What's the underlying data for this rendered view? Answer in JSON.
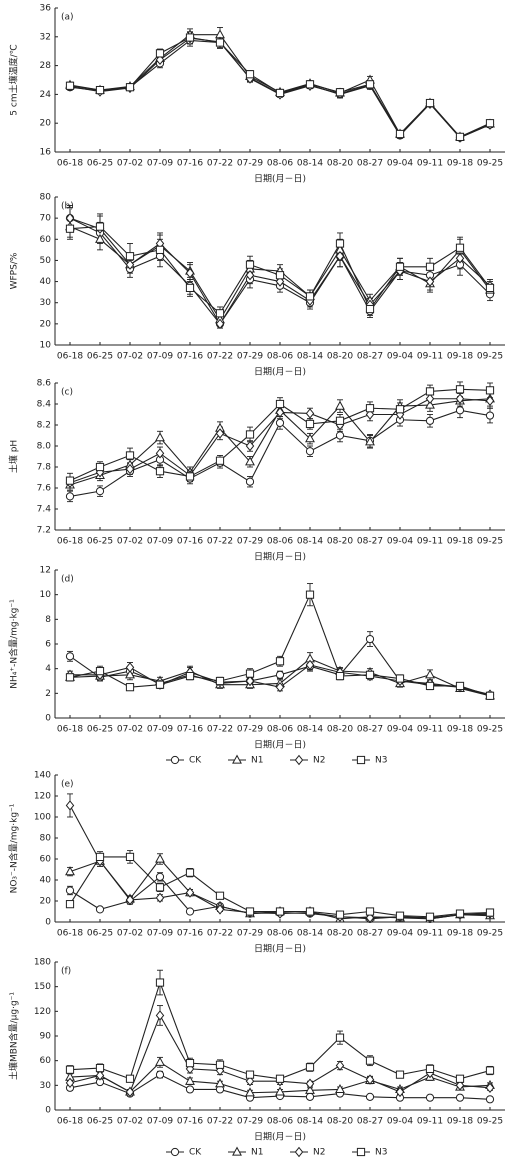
{
  "chart_data": [
    {
      "type": "line",
      "panel": "(a)",
      "ylabel": "5 cm土壤温度/℃",
      "xlabel": "日期(月－日)",
      "color": "#222222",
      "categories": [
        "06-18",
        "06-25",
        "07-02",
        "07-09",
        "07-16",
        "07-22",
        "07-29",
        "08-06",
        "08-14",
        "08-20",
        "08-27",
        "09-04",
        "09-11",
        "09-18",
        "09-25"
      ],
      "ylim": [
        16,
        36
      ],
      "yticks": [
        16,
        20,
        24,
        28,
        32,
        36
      ],
      "legend": false,
      "series": [
        {
          "marker": "circle",
          "values": [
            25.0,
            24.5,
            25.0,
            28.3,
            31.5,
            31.2,
            26.3,
            24.1,
            25.3,
            24.0,
            25.2,
            18.3,
            22.7,
            18.0,
            19.8
          ],
          "errors": [
            0.4,
            0.3,
            0.3,
            0.6,
            0.8,
            0.8,
            0.5,
            0.4,
            0.4,
            0.5,
            0.5,
            0.4,
            0.3,
            0.3,
            0.4
          ]
        },
        {
          "marker": "triangle",
          "values": [
            25.3,
            24.6,
            25.1,
            29.0,
            32.3,
            32.3,
            26.5,
            24.3,
            25.5,
            24.2,
            26.0,
            18.5,
            22.8,
            18.1,
            19.9
          ],
          "errors": [
            0.4,
            0.3,
            0.3,
            0.6,
            0.8,
            1.0,
            0.5,
            0.4,
            0.4,
            0.5,
            0.5,
            0.4,
            0.3,
            0.3,
            0.4
          ]
        },
        {
          "marker": "diamond",
          "values": [
            25.1,
            24.4,
            24.9,
            28.8,
            31.8,
            31.3,
            26.2,
            24.0,
            25.2,
            24.1,
            25.3,
            18.4,
            22.7,
            18.0,
            19.8
          ],
          "errors": [
            0.4,
            0.3,
            0.3,
            0.6,
            0.8,
            0.8,
            0.5,
            0.4,
            0.4,
            0.5,
            0.5,
            0.4,
            0.3,
            0.3,
            0.4
          ]
        },
        {
          "marker": "square",
          "values": [
            25.2,
            24.6,
            25.0,
            29.7,
            31.9,
            31.2,
            26.8,
            24.2,
            25.4,
            24.3,
            25.4,
            18.5,
            22.8,
            18.1,
            20.0
          ],
          "errors": [
            0.4,
            0.3,
            0.3,
            0.6,
            0.8,
            0.8,
            0.5,
            0.4,
            0.4,
            0.5,
            0.5,
            0.4,
            0.3,
            0.3,
            0.4
          ]
        }
      ]
    },
    {
      "type": "line",
      "panel": "(b)",
      "ylabel": "WFPS/%",
      "xlabel": "日期(月－日)",
      "color": "#222222",
      "categories": [
        "06-18",
        "06-25",
        "07-02",
        "07-09",
        "07-16",
        "07-22",
        "07-29",
        "08-06",
        "08-14",
        "08-20",
        "08-27",
        "09-04",
        "09-11",
        "09-18",
        "09-25"
      ],
      "ylim": [
        10,
        80
      ],
      "yticks": [
        10,
        20,
        30,
        40,
        50,
        60,
        70,
        80
      ],
      "legend": false,
      "series": [
        {
          "marker": "circle",
          "values": [
            70,
            63,
            46,
            52,
            38,
            20,
            41,
            38,
            30,
            52,
            26,
            45,
            43,
            48,
            34
          ],
          "errors": [
            5,
            5,
            4,
            5,
            4,
            2,
            4,
            3,
            3,
            5,
            3,
            4,
            4,
            5,
            3
          ]
        },
        {
          "marker": "triangle",
          "values": [
            66,
            60,
            48,
            57,
            45,
            22,
            46,
            45,
            33,
            55,
            31,
            47,
            39,
            55,
            36
          ],
          "errors": [
            5,
            5,
            4,
            5,
            4,
            3,
            4,
            3,
            3,
            5,
            3,
            4,
            4,
            5,
            3
          ]
        },
        {
          "marker": "diamond",
          "values": [
            70,
            65,
            48,
            58,
            44,
            20,
            43,
            40,
            31,
            52,
            29,
            45,
            40,
            51,
            38
          ],
          "errors": [
            6,
            6,
            4,
            5,
            4,
            2,
            4,
            3,
            3,
            5,
            3,
            4,
            4,
            5,
            3
          ]
        },
        {
          "marker": "square",
          "values": [
            65,
            66,
            52,
            55,
            37,
            25,
            48,
            43,
            33,
            58,
            27,
            47,
            47,
            56,
            37
          ],
          "errors": [
            5,
            6,
            6,
            5,
            4,
            3,
            4,
            3,
            3,
            5,
            3,
            4,
            4,
            5,
            3
          ]
        }
      ]
    },
    {
      "type": "line",
      "panel": "(c)",
      "ylabel": "土壤 pH",
      "xlabel": "日期(月－日)",
      "color": "#222222",
      "categories": [
        "06-18",
        "06-25",
        "07-02",
        "07-09",
        "07-16",
        "07-22",
        "07-29",
        "08-06",
        "08-14",
        "08-20",
        "08-27",
        "09-04",
        "09-11",
        "09-18",
        "09-25"
      ],
      "ylim": [
        7.2,
        8.6
      ],
      "yticks": [
        7.2,
        7.4,
        7.6,
        7.8,
        {
          "value": 8,
          "label": "8.0"
        },
        8.2,
        8.4,
        8.6
      ],
      "legend": false,
      "series": [
        {
          "marker": "circle",
          "values": [
            7.52,
            7.57,
            7.76,
            7.87,
            7.69,
            7.84,
            7.66,
            8.22,
            7.95,
            8.1,
            8.05,
            8.25,
            8.24,
            8.34,
            8.29
          ],
          "errors": [
            0.05,
            0.05,
            0.05,
            0.06,
            0.05,
            0.05,
            0.05,
            0.06,
            0.05,
            0.06,
            0.06,
            0.06,
            0.06,
            0.07,
            0.07
          ]
        },
        {
          "marker": "triangle",
          "values": [
            7.63,
            7.72,
            7.82,
            8.08,
            7.75,
            8.17,
            7.85,
            8.34,
            8.07,
            8.38,
            8.04,
            8.38,
            8.39,
            8.43,
            8.45
          ],
          "errors": [
            0.05,
            0.05,
            0.05,
            0.06,
            0.05,
            0.06,
            0.05,
            0.06,
            0.05,
            0.06,
            0.06,
            0.06,
            0.06,
            0.07,
            0.07
          ]
        },
        {
          "marker": "diamond",
          "values": [
            7.65,
            7.75,
            7.78,
            7.93,
            7.72,
            8.12,
            8.0,
            8.32,
            8.31,
            8.2,
            8.3,
            8.3,
            8.45,
            8.45,
            8.43
          ],
          "errors": [
            0.05,
            0.05,
            0.05,
            0.06,
            0.05,
            0.06,
            0.05,
            0.06,
            0.05,
            0.06,
            0.06,
            0.06,
            0.06,
            0.07,
            0.07
          ]
        },
        {
          "marker": "square",
          "values": [
            7.67,
            7.8,
            7.91,
            7.76,
            7.71,
            7.86,
            8.11,
            8.4,
            8.21,
            8.24,
            8.36,
            8.35,
            8.52,
            8.54,
            8.53
          ],
          "errors": [
            0.07,
            0.05,
            0.07,
            0.06,
            0.05,
            0.05,
            0.07,
            0.06,
            0.05,
            0.06,
            0.06,
            0.06,
            0.06,
            0.07,
            0.07
          ]
        }
      ]
    },
    {
      "type": "line",
      "panel": "(d)",
      "ylabel": "NH₄⁺-N含量/mg·kg⁻¹",
      "xlabel": "日期(月－日)",
      "color": "#222222",
      "categories": [
        "06-18",
        "06-25",
        "07-02",
        "07-09",
        "07-16",
        "07-22",
        "07-29",
        "08-06",
        "08-14",
        "08-20",
        "08-27",
        "09-04",
        "09-11",
        "09-18",
        "09-25"
      ],
      "ylim": [
        0,
        12
      ],
      "yticks": [
        0,
        2,
        4,
        6,
        8,
        10,
        12
      ],
      "legend": true,
      "series": [
        {
          "name": "CK",
          "marker": "circle",
          "values": [
            5.0,
            3.3,
            3.8,
            2.8,
            3.5,
            2.8,
            3.0,
            3.5,
            4.2,
            3.5,
            6.4,
            3.0,
            2.7,
            2.5,
            1.8
          ],
          "errors": [
            0.4,
            0.3,
            0.3,
            0.3,
            0.3,
            0.3,
            0.3,
            0.3,
            0.4,
            0.3,
            0.6,
            0.3,
            0.3,
            0.2,
            0.2
          ]
        },
        {
          "name": "N1",
          "marker": "triangle",
          "values": [
            3.3,
            3.4,
            3.5,
            3.0,
            3.8,
            2.7,
            2.7,
            2.8,
            4.8,
            3.8,
            3.7,
            2.8,
            3.5,
            2.4,
            1.8
          ],
          "errors": [
            0.3,
            0.3,
            0.4,
            0.3,
            0.4,
            0.3,
            0.3,
            0.3,
            0.5,
            0.3,
            0.3,
            0.3,
            0.4,
            0.2,
            0.2
          ]
        },
        {
          "name": "N2",
          "marker": "diamond",
          "values": [
            3.5,
            3.5,
            4.1,
            2.7,
            3.7,
            2.9,
            3.0,
            2.5,
            4.3,
            3.7,
            3.4,
            3.0,
            2.8,
            2.5,
            1.9
          ],
          "errors": [
            0.3,
            0.3,
            0.4,
            0.3,
            0.4,
            0.3,
            0.3,
            0.3,
            0.4,
            0.3,
            0.3,
            0.3,
            0.3,
            0.2,
            0.2
          ]
        },
        {
          "name": "N3",
          "marker": "square",
          "values": [
            3.3,
            3.8,
            2.5,
            2.7,
            3.4,
            3.0,
            3.6,
            4.6,
            10.0,
            3.4,
            3.5,
            3.2,
            2.6,
            2.6,
            1.8
          ],
          "errors": [
            0.3,
            0.4,
            0.2,
            0.3,
            0.3,
            0.3,
            0.4,
            0.4,
            0.9,
            0.3,
            0.3,
            0.3,
            0.3,
            0.2,
            0.2
          ]
        }
      ]
    },
    {
      "type": "line",
      "panel": "(e)",
      "ylabel": "NO₃⁻-N含量/mg·kg⁻¹",
      "xlabel": "日期(月－日)",
      "color": "#222222",
      "categories": [
        "06-18",
        "06-25",
        "07-02",
        "07-09",
        "07-16",
        "07-22",
        "07-29",
        "08-06",
        "08-14",
        "08-20",
        "08-27",
        "09-04",
        "09-11",
        "09-18",
        "09-25"
      ],
      "ylim": [
        0,
        140
      ],
      "yticks": [
        0,
        20,
        40,
        60,
        80,
        100,
        120,
        140
      ],
      "legend": false,
      "series": [
        {
          "marker": "circle",
          "values": [
            30,
            12,
            20,
            43,
            10,
            15,
            8,
            9,
            8,
            5,
            3,
            5,
            3,
            7,
            7
          ],
          "errors": [
            4,
            2,
            3,
            4,
            2,
            2,
            2,
            2,
            2,
            1,
            1,
            1,
            1,
            1,
            1
          ]
        },
        {
          "marker": "triangle",
          "values": [
            48,
            58,
            22,
            60,
            28,
            15,
            8,
            10,
            10,
            3,
            5,
            4,
            3,
            7,
            6
          ],
          "errors": [
            4,
            5,
            3,
            5,
            3,
            2,
            2,
            2,
            2,
            1,
            1,
            1,
            1,
            1,
            1
          ]
        },
        {
          "marker": "diamond",
          "values": [
            111,
            58,
            21,
            23,
            28,
            12,
            9,
            8,
            9,
            5,
            4,
            5,
            4,
            7,
            8
          ],
          "errors": [
            11,
            5,
            3,
            3,
            3,
            2,
            2,
            2,
            2,
            1,
            1,
            1,
            1,
            1,
            1
          ]
        },
        {
          "marker": "square",
          "values": [
            17,
            62,
            62,
            33,
            47,
            25,
            10,
            10,
            10,
            7,
            10,
            6,
            5,
            8,
            9
          ],
          "errors": [
            2,
            5,
            6,
            4,
            4,
            3,
            2,
            2,
            2,
            1,
            2,
            1,
            1,
            1,
            1
          ]
        }
      ]
    },
    {
      "type": "line",
      "panel": "(f)",
      "ylabel": "土壤MBN含量/μg·g⁻¹",
      "xlabel": "日期(月－日)",
      "color": "#222222",
      "categories": [
        "06-18",
        "06-25",
        "07-02",
        "07-09",
        "07-16",
        "07-22",
        "07-29",
        "08-06",
        "08-14",
        "08-20",
        "08-27",
        "09-04",
        "09-11",
        "09-18",
        "09-25"
      ],
      "ylim": [
        0,
        180
      ],
      "yticks": [
        0,
        30,
        60,
        90,
        120,
        150,
        180
      ],
      "legend": true,
      "series": [
        {
          "name": "CK",
          "marker": "circle",
          "values": [
            27,
            34,
            20,
            43,
            25,
            25,
            15,
            17,
            16,
            20,
            16,
            15,
            15,
            15,
            13
          ],
          "errors": [
            3,
            3,
            3,
            4,
            3,
            3,
            2,
            2,
            2,
            3,
            2,
            2,
            2,
            2,
            2
          ]
        },
        {
          "name": "N1",
          "marker": "triangle",
          "values": [
            40,
            42,
            22,
            58,
            35,
            32,
            21,
            22,
            24,
            25,
            36,
            25,
            40,
            28,
            30
          ],
          "errors": [
            4,
            4,
            3,
            6,
            4,
            3,
            3,
            3,
            3,
            3,
            4,
            3,
            4,
            3,
            3
          ]
        },
        {
          "name": "N2",
          "marker": "diamond",
          "values": [
            33,
            42,
            22,
            115,
            50,
            48,
            35,
            35,
            32,
            54,
            37,
            22,
            45,
            30,
            27
          ],
          "errors": [
            4,
            4,
            3,
            12,
            5,
            5,
            4,
            4,
            3,
            5,
            4,
            3,
            5,
            3,
            3
          ]
        },
        {
          "name": "N3",
          "marker": "square",
          "values": [
            49,
            51,
            38,
            155,
            57,
            55,
            43,
            38,
            52,
            88,
            60,
            43,
            50,
            38,
            48
          ],
          "errors": [
            5,
            5,
            4,
            15,
            6,
            6,
            4,
            4,
            5,
            8,
            6,
            4,
            5,
            4,
            5
          ]
        }
      ]
    }
  ]
}
